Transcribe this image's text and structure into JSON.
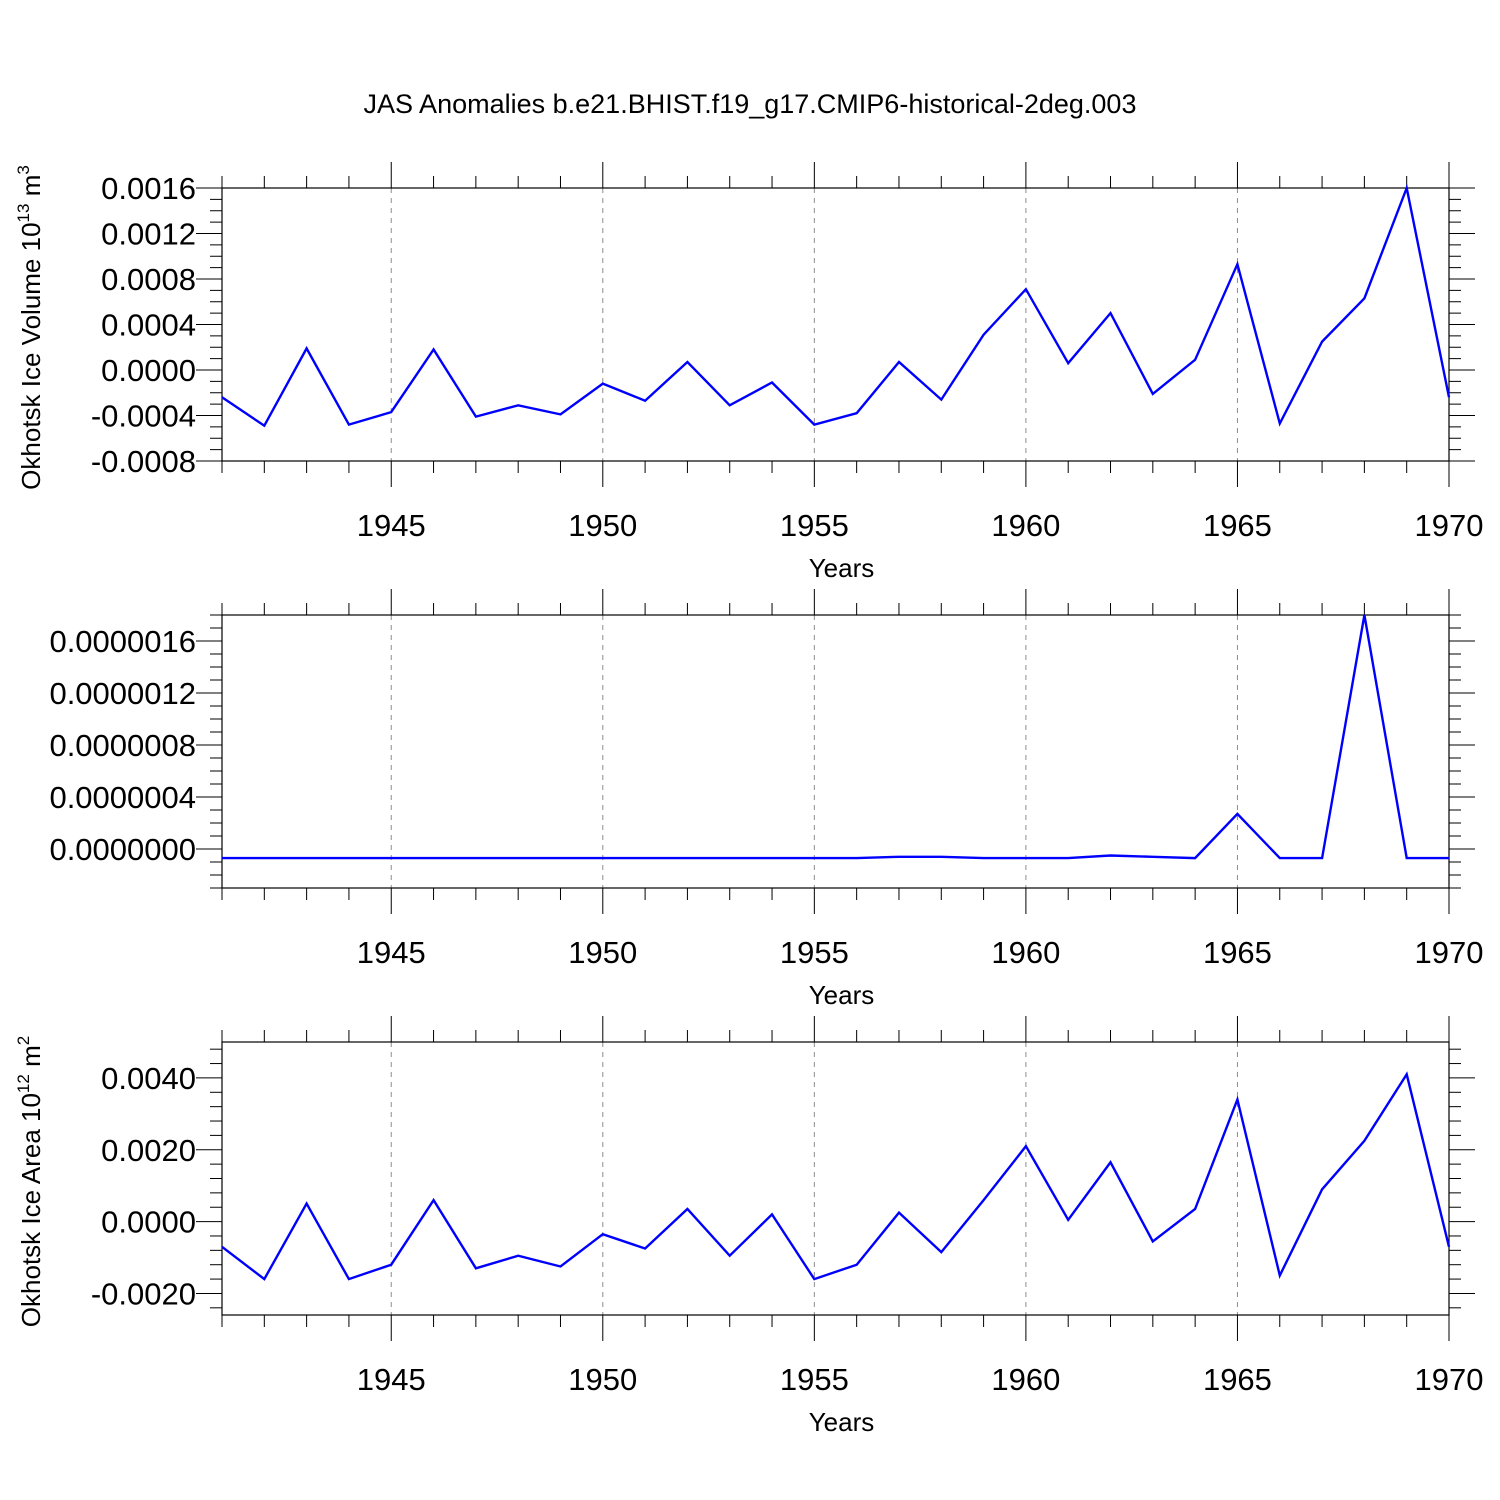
{
  "title": "JAS Anomalies b.e21.BHIST.f19_g17.CMIP6-historical-2deg.003",
  "colors": {
    "line": "#0000ff",
    "grid": "#8c8c8c",
    "frame": "#000000"
  },
  "chart_data": [
    {
      "type": "line",
      "title": "JAS Anomalies b.e21.BHIST.f19_g17.CMIP6-historical-2deg.003",
      "xlabel": "Years",
      "ylabel": "Okhotsk Ice Volume 10",
      "ylabel_exp": "13",
      "ylabel_unit": " m",
      "ylabel_unit_exp": "3",
      "xlim": [
        1941,
        1970
      ],
      "ylim": [
        -0.0008,
        0.0016
      ],
      "x_ticks": [
        1945,
        1950,
        1955,
        1960,
        1965,
        1970
      ],
      "y_ticks": [
        -0.0008,
        -0.0004,
        0.0,
        0.0004,
        0.0008,
        0.0012,
        0.0016
      ],
      "y_tick_labels": [
        "-0.0008",
        "-0.0004",
        "0.0000",
        "0.0004",
        "0.0008",
        "0.0012",
        "0.0016"
      ],
      "y_minor_step": 0.0001,
      "grid": "vertical dashed at major x ticks",
      "x": [
        1941,
        1942,
        1943,
        1944,
        1945,
        1946,
        1947,
        1948,
        1949,
        1950,
        1951,
        1952,
        1953,
        1954,
        1955,
        1956,
        1957,
        1958,
        1959,
        1960,
        1961,
        1962,
        1963,
        1964,
        1965,
        1966,
        1967,
        1968,
        1969,
        1970
      ],
      "series": [
        {
          "values": [
            -0.00024,
            -0.00049,
            0.00019,
            -0.00048,
            -0.00037,
            0.00018,
            -0.00041,
            -0.00031,
            -0.00039,
            -0.00012,
            -0.00027,
            7e-05,
            -0.00031,
            -0.00011,
            -0.00048,
            -0.00038,
            7e-05,
            -0.00026,
            0.00031,
            0.00071,
            6e-05,
            0.0005,
            -0.00021,
            9e-05,
            0.00093,
            -0.00047,
            0.00025,
            0.00063,
            0.0016,
            -0.00024
          ]
        }
      ]
    },
    {
      "type": "line",
      "xlabel": "Years",
      "ylabel": "",
      "xlim": [
        1941,
        1970
      ],
      "ylim": [
        -3e-07,
        1.8e-06
      ],
      "x_ticks": [
        1945,
        1950,
        1955,
        1960,
        1965,
        1970
      ],
      "y_ticks": [
        0.0,
        4e-07,
        8e-07,
        1.2e-06,
        1.6e-06
      ],
      "y_tick_labels": [
        "0.0000000",
        "0.0000004",
        "0.0000008",
        "0.0000012",
        "0.0000016"
      ],
      "y_minor_step": 1e-07,
      "grid": "vertical dashed at major x ticks",
      "x": [
        1941,
        1942,
        1943,
        1944,
        1945,
        1946,
        1947,
        1948,
        1949,
        1950,
        1951,
        1952,
        1953,
        1954,
        1955,
        1956,
        1957,
        1958,
        1959,
        1960,
        1961,
        1962,
        1963,
        1964,
        1965,
        1966,
        1967,
        1968,
        1969,
        1970
      ],
      "series": [
        {
          "values": [
            -7e-08,
            -7e-08,
            -7e-08,
            -7e-08,
            -7e-08,
            -7e-08,
            -7e-08,
            -7e-08,
            -7e-08,
            -7e-08,
            -7e-08,
            -7e-08,
            -7e-08,
            -7e-08,
            -7e-08,
            -7e-08,
            -6e-08,
            -6e-08,
            -7e-08,
            -7e-08,
            -7e-08,
            -5e-08,
            -6e-08,
            -7e-08,
            2.7e-07,
            -7e-08,
            -7e-08,
            1.8e-06,
            -7e-08,
            -7e-08
          ]
        }
      ]
    },
    {
      "type": "line",
      "xlabel": "Years",
      "ylabel": "Okhotsk Ice Area 10",
      "ylabel_exp": "12",
      "ylabel_unit": " m",
      "ylabel_unit_exp": "2",
      "xlim": [
        1941,
        1970
      ],
      "ylim": [
        -0.0026,
        0.005
      ],
      "x_ticks": [
        1945,
        1950,
        1955,
        1960,
        1965,
        1970
      ],
      "y_ticks": [
        -0.002,
        0.0,
        0.002,
        0.004
      ],
      "y_tick_labels": [
        "-0.0020",
        "0.0000",
        "0.0020",
        "0.0040"
      ],
      "y_minor_step": 0.0004,
      "grid": "vertical dashed at major x ticks",
      "x": [
        1941,
        1942,
        1943,
        1944,
        1945,
        1946,
        1947,
        1948,
        1949,
        1950,
        1951,
        1952,
        1953,
        1954,
        1955,
        1956,
        1957,
        1958,
        1959,
        1960,
        1961,
        1962,
        1963,
        1964,
        1965,
        1966,
        1967,
        1968,
        1969,
        1970
      ],
      "series": [
        {
          "values": [
            -0.0007,
            -0.0016,
            0.0005,
            -0.0016,
            -0.0012,
            0.0006,
            -0.0013,
            -0.00095,
            -0.00125,
            -0.00035,
            -0.00075,
            0.00035,
            -0.00095,
            0.0002,
            -0.0016,
            -0.0012,
            0.00025,
            -0.00085,
            0.0006,
            0.0021,
            5e-05,
            0.00165,
            -0.00055,
            0.00035,
            0.0034,
            -0.0015,
            0.0009,
            0.00225,
            0.0041,
            -0.0007
          ]
        }
      ]
    }
  ]
}
